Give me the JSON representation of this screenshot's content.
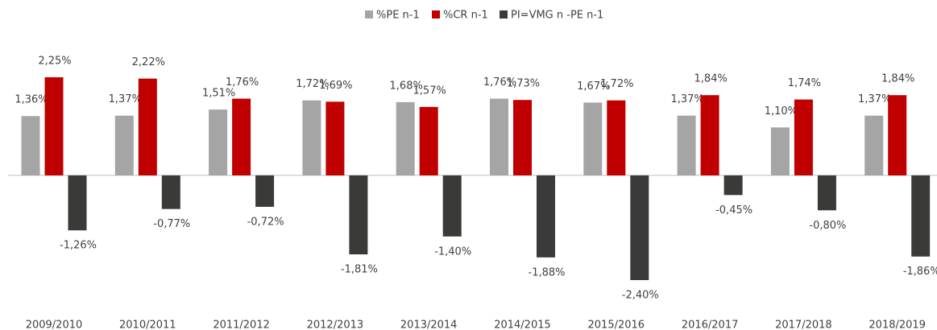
{
  "chart_data": {
    "type": "bar",
    "categories": [
      "2009/2010",
      "2010/2011",
      "2011/2012",
      "2012/2013",
      "2013/2014",
      "2014/2015",
      "2015/2016",
      "2016/2017",
      "2017/2018",
      "2018/2019"
    ],
    "series": [
      {
        "name": "%PE n-1",
        "color": "#a5a5a5",
        "values": [
          1.36,
          1.37,
          1.51,
          1.72,
          1.68,
          1.76,
          1.67,
          1.37,
          1.1,
          1.37
        ],
        "value_labels": [
          "1,36%",
          "1,37%",
          "1,51%",
          "1,72%",
          "1,68%",
          "1,76%",
          "1,67%",
          "1,37%",
          "1,10%",
          "1,37%"
        ]
      },
      {
        "name": "%CR n-1",
        "color": "#c00000",
        "values": [
          2.25,
          2.22,
          1.76,
          1.69,
          1.57,
          1.73,
          1.72,
          1.84,
          1.74,
          1.84
        ],
        "value_labels": [
          "2,25%",
          "2,22%",
          "1,76%",
          "1,69%",
          "1,57%",
          "1,73%",
          "1,72%",
          "1,84%",
          "1,74%",
          "1,84%"
        ]
      },
      {
        "name": "PI=VMG n -PE n-1",
        "color": "#3a3a38",
        "values": [
          -1.26,
          -0.77,
          -0.72,
          -1.81,
          -1.4,
          -1.88,
          -2.4,
          -0.45,
          -0.8,
          -1.86
        ],
        "value_labels": [
          "-1,26%",
          "-0,77%",
          "-0,72%",
          "-1,81%",
          "-1,40%",
          "-1,88%",
          "-2,40%",
          "-0,45%",
          "-0,80%",
          "-1,86%"
        ]
      }
    ],
    "legend": "top"
  }
}
